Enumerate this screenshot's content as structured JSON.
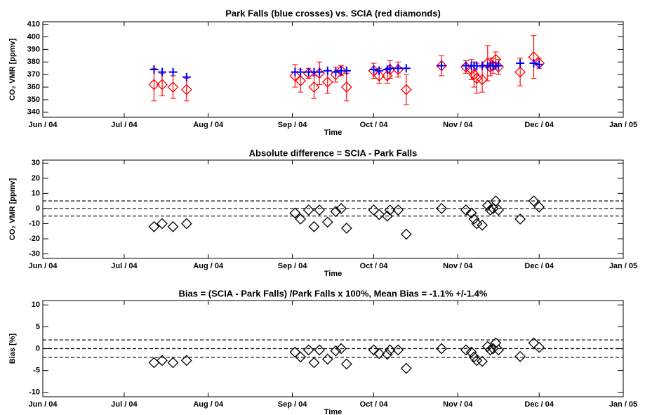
{
  "chart_data": [
    {
      "type": "scatter",
      "title": "Park Falls (blue crosses) vs. SCIA (red diamonds)",
      "xlabel": "Time",
      "ylabel": "CO₂ VMR [ppmv]",
      "xlim": [
        0,
        214
      ],
      "xticks": [
        {
          "value": 0,
          "label": "Jun / 04"
        },
        {
          "value": 30,
          "label": "Jul / 04"
        },
        {
          "value": 61,
          "label": "Aug / 04"
        },
        {
          "value": 92,
          "label": "Sep / 04"
        },
        {
          "value": 122,
          "label": "Oct / 04"
        },
        {
          "value": 153,
          "label": "Nov / 04"
        },
        {
          "value": 183,
          "label": "Dec / 04"
        },
        {
          "value": 214,
          "label": "Jan / 05"
        }
      ],
      "ylim": [
        336,
        412
      ],
      "yticks": [
        340,
        350,
        360,
        370,
        380,
        390,
        400,
        410
      ],
      "x": [
        41,
        44,
        48,
        53,
        93,
        95,
        98,
        100,
        102,
        105,
        108,
        110,
        112,
        122,
        124,
        127,
        128,
        131,
        134,
        147,
        156,
        158,
        159,
        160,
        162,
        164,
        165,
        166,
        167,
        168,
        176,
        181,
        183
      ],
      "series": [
        {
          "name": "SCIA",
          "color": "#ff0000",
          "marker": "diamond",
          "values": [
            362,
            362,
            360,
            358,
            369,
            365,
            371,
            360,
            371,
            364,
            370,
            373,
            360,
            373,
            369,
            369,
            374,
            374,
            358,
            377,
            376,
            374,
            370,
            367,
            366,
            379,
            376,
            377,
            382,
            376,
            372,
            384,
            379
          ],
          "errors": [
            13,
            9,
            9,
            9,
            9,
            9,
            4,
            9,
            9,
            9,
            6,
            4,
            11,
            6,
            6,
            6,
            7,
            6,
            12,
            8,
            5,
            8,
            10,
            12,
            10,
            14,
            7,
            6,
            6,
            6,
            11,
            17,
            4
          ]
        },
        {
          "name": "Park Falls",
          "color": "#0000ff",
          "marker": "cross",
          "values": [
            374,
            372,
            372,
            368,
            372,
            372,
            372,
            372,
            372,
            373,
            372,
            373,
            373,
            374,
            373,
            374,
            375,
            375,
            375,
            377,
            377,
            377,
            377,
            377,
            377,
            377,
            377,
            377,
            377,
            377,
            379,
            379,
            378
          ]
        }
      ]
    },
    {
      "type": "scatter",
      "title": "Absolute difference = SCIA - Park Falls",
      "xlabel": "Time",
      "ylabel": "CO₂ VMR [ppmv]",
      "xlim": [
        0,
        214
      ],
      "xticks": [
        {
          "value": 0,
          "label": "Jun / 04"
        },
        {
          "value": 30,
          "label": "Jul / 04"
        },
        {
          "value": 61,
          "label": "Aug / 04"
        },
        {
          "value": 92,
          "label": "Sep / 04"
        },
        {
          "value": 122,
          "label": "Oct / 04"
        },
        {
          "value": 153,
          "label": "Nov / 04"
        },
        {
          "value": 183,
          "label": "Dec / 04"
        },
        {
          "value": 214,
          "label": "Jan / 05"
        }
      ],
      "ylim": [
        -33,
        32
      ],
      "yticks": [
        -30,
        -20,
        -10,
        0,
        10,
        20,
        30
      ],
      "hlines": [
        -5,
        0,
        5
      ],
      "x": [
        41,
        44,
        48,
        53,
        93,
        95,
        98,
        100,
        102,
        105,
        108,
        110,
        112,
        122,
        124,
        127,
        128,
        131,
        134,
        147,
        156,
        158,
        159,
        160,
        162,
        164,
        165,
        166,
        167,
        168,
        176,
        181,
        183
      ],
      "series": [
        {
          "name": "SCIA - Park Falls",
          "color": "#000000",
          "marker": "diamond",
          "values": [
            -12,
            -10,
            -12,
            -10,
            -3,
            -7,
            -1,
            -12,
            -1,
            -9,
            -2,
            0,
            -13,
            -1,
            -4,
            -5,
            -1,
            -1,
            -17,
            0,
            -1,
            -3,
            -7,
            -10,
            -11,
            2,
            -1,
            0,
            5,
            -1,
            -7,
            5,
            1
          ]
        }
      ]
    },
    {
      "type": "scatter",
      "title": "Bias = (SCIA - Park Falls) /Park Falls x 100%, Mean Bias = -1.1% +/-1.4%",
      "xlabel": "Time",
      "ylabel": "Bias [%]",
      "xlim": [
        0,
        214
      ],
      "xticks": [
        {
          "value": 0,
          "label": "Jun / 04"
        },
        {
          "value": 30,
          "label": "Jul / 04"
        },
        {
          "value": 61,
          "label": "Aug / 04"
        },
        {
          "value": 92,
          "label": "Sep / 04"
        },
        {
          "value": 122,
          "label": "Oct / 04"
        },
        {
          "value": 153,
          "label": "Nov / 04"
        },
        {
          "value": 183,
          "label": "Dec / 04"
        },
        {
          "value": 214,
          "label": "Jan / 05"
        }
      ],
      "ylim": [
        -11,
        11
      ],
      "yticks": [
        -10,
        -5,
        0,
        5,
        10
      ],
      "hlines": [
        -2,
        0,
        2
      ],
      "x": [
        41,
        44,
        48,
        53,
        93,
        95,
        98,
        100,
        102,
        105,
        108,
        110,
        112,
        122,
        124,
        127,
        128,
        131,
        134,
        147,
        156,
        158,
        159,
        160,
        162,
        164,
        165,
        166,
        167,
        168,
        176,
        181,
        183
      ],
      "series": [
        {
          "name": "Bias",
          "color": "#000000",
          "marker": "diamond",
          "values": [
            -3.2,
            -2.7,
            -3.2,
            -2.7,
            -0.8,
            -1.9,
            -0.3,
            -3.2,
            -0.3,
            -2.4,
            -0.5,
            0,
            -3.5,
            -0.3,
            -1.1,
            -1.3,
            -0.3,
            -0.3,
            -4.5,
            0,
            -0.3,
            -0.8,
            -1.9,
            -2.7,
            -2.9,
            0.5,
            -0.3,
            0,
            1.3,
            -0.3,
            -1.8,
            1.3,
            0.3
          ]
        }
      ]
    }
  ]
}
